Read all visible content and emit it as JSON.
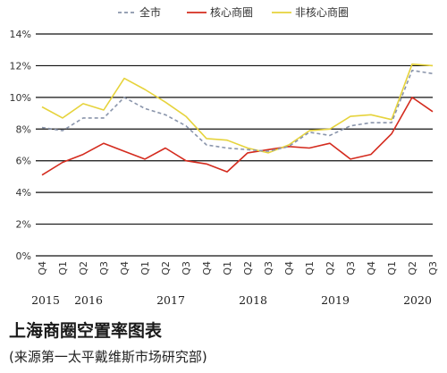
{
  "chart_data": {
    "type": "line",
    "title": "上海商圈空置率图表",
    "subtitle": "(来源第一太平戴维斯市场研究部)",
    "xlabel": "",
    "ylabel": "",
    "categories": [
      "Q4",
      "Q1",
      "Q2",
      "Q3",
      "Q4",
      "Q1",
      "Q2",
      "Q3",
      "Q4",
      "Q1",
      "Q2",
      "Q3",
      "Q4",
      "Q1",
      "Q2",
      "Q3",
      "Q4",
      "Q1",
      "Q2",
      "Q3"
    ],
    "years": [
      {
        "label": "2015",
        "quarter_index": 0
      },
      {
        "label": "2016",
        "quarter_index": 2
      },
      {
        "label": "2017",
        "quarter_index": 6
      },
      {
        "label": "2018",
        "quarter_index": 10
      },
      {
        "label": "2019",
        "quarter_index": 14
      },
      {
        "label": "2020",
        "quarter_index": 18
      }
    ],
    "ylim": [
      0,
      14
    ],
    "yticks": [
      "0%",
      "2%",
      "4%",
      "6%",
      "8%",
      "10%",
      "12%",
      "14%"
    ],
    "yticks_values": [
      0,
      2,
      4,
      6,
      8,
      10,
      12,
      14
    ],
    "grid": "horizontal",
    "legend_position": "top-center",
    "series": [
      {
        "name": "全市",
        "color": "#8a95ab",
        "dashed": true,
        "values": [
          8.1,
          7.9,
          8.7,
          8.7,
          10.0,
          9.3,
          8.9,
          8.2,
          7.0,
          6.8,
          6.7,
          6.6,
          6.9,
          7.8,
          7.6,
          8.2,
          8.4,
          8.4,
          11.7,
          11.5
        ]
      },
      {
        "name": "核心商圈",
        "color": "#d42b1e",
        "dashed": false,
        "values": [
          5.1,
          5.9,
          6.4,
          7.1,
          6.6,
          6.1,
          6.8,
          6.0,
          5.8,
          5.3,
          6.5,
          6.7,
          6.9,
          6.8,
          7.1,
          6.1,
          6.4,
          7.7,
          10.0,
          9.1
        ]
      },
      {
        "name": "非核心商圈",
        "color": "#e6d33c",
        "dashed": false,
        "values": [
          9.4,
          8.7,
          9.6,
          9.2,
          11.2,
          10.5,
          9.7,
          8.8,
          7.4,
          7.3,
          6.8,
          6.5,
          7.0,
          7.9,
          8.0,
          8.8,
          8.9,
          8.6,
          12.1,
          12.0
        ]
      }
    ]
  }
}
